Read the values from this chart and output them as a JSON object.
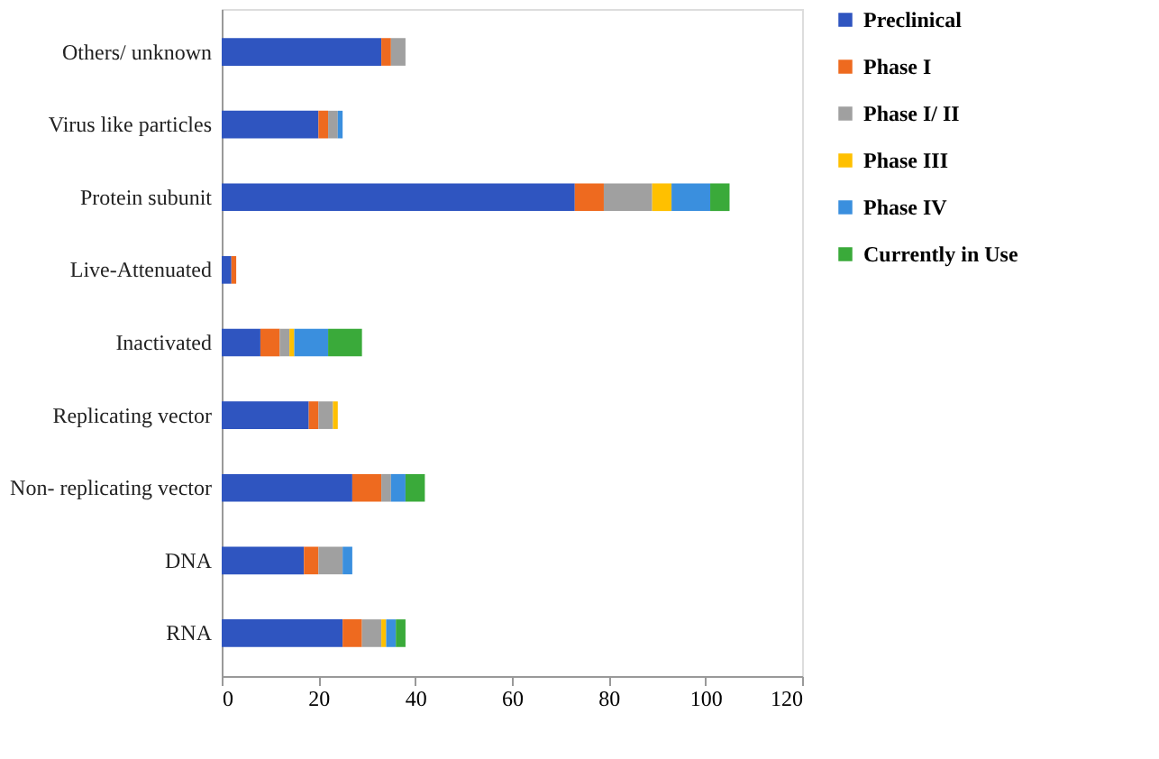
{
  "chart_data": {
    "type": "bar",
    "orientation": "horizontal",
    "stacked": true,
    "categories": [
      "Others/ unknown",
      "Virus like particles",
      "Protein subunit",
      "Live-Attenuated",
      "Inactivated",
      "Replicating vector",
      "Non- replicating vector",
      "DNA",
      "RNA"
    ],
    "series": [
      {
        "name": "Preclinical",
        "color": "#2f55c0",
        "values": [
          33,
          20,
          73,
          2,
          8,
          18,
          27,
          17,
          25
        ]
      },
      {
        "name": "Phase I",
        "color": "#ee6a1f",
        "values": [
          2,
          2,
          6,
          1,
          4,
          2,
          6,
          3,
          4
        ]
      },
      {
        "name": "Phase I/ II",
        "color": "#a0a0a0",
        "values": [
          3,
          2,
          10,
          0,
          2,
          3,
          2,
          5,
          4
        ]
      },
      {
        "name": "Phase III",
        "color": "#ffc000",
        "values": [
          0,
          0,
          4,
          0,
          1,
          1,
          0,
          0,
          1
        ]
      },
      {
        "name": "Phase IV",
        "color": "#3a8fde",
        "values": [
          0,
          1,
          8,
          0,
          7,
          0,
          3,
          2,
          2
        ]
      },
      {
        "name": "Currently in Use",
        "color": "#3aaa3a",
        "values": [
          0,
          0,
          4,
          0,
          7,
          0,
          4,
          0,
          2
        ]
      }
    ],
    "xlim": [
      0,
      120
    ],
    "xticks": [
      0,
      20,
      40,
      60,
      80,
      100,
      120
    ],
    "grid": false,
    "legend": "right"
  }
}
